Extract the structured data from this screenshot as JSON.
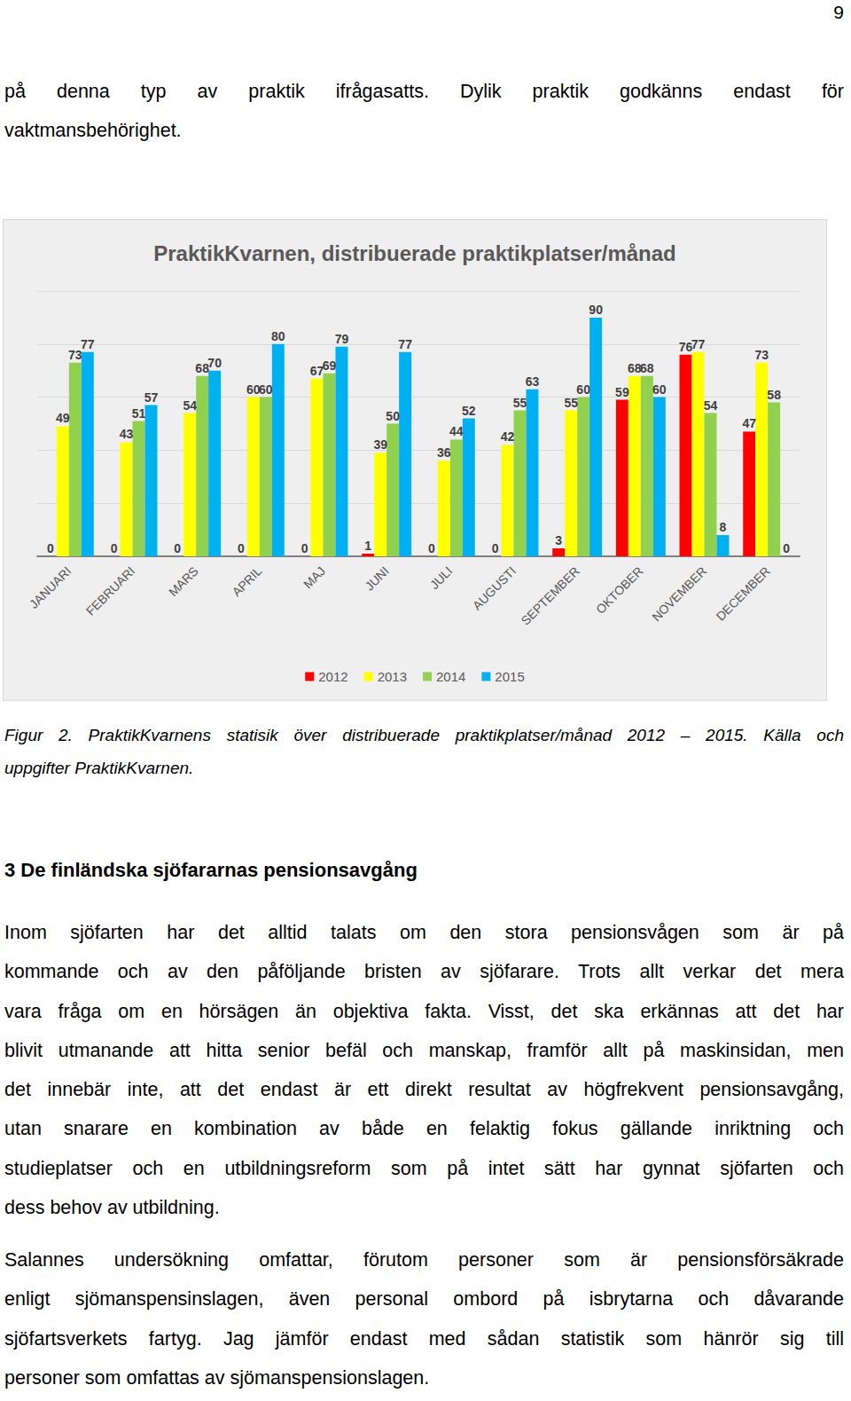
{
  "page_number": "9",
  "intro": {
    "lines": [
      "på denna typ av praktik ifrågasatts. Dylik praktik godkänns endast för",
      "vaktmansbehörighet."
    ]
  },
  "chart_data": {
    "type": "bar",
    "title": "PraktikKvarnen, distribuerade praktikplatser/månad",
    "categories": [
      "JANUARI",
      "FEBRUARI",
      "MARS",
      "APRIL",
      "MAJ",
      "JUNI",
      "JULI",
      "AUGUSTI",
      "SEPTEMBER",
      "OKTOBER",
      "NOVEMBER",
      "DECEMBER"
    ],
    "series": [
      {
        "name": "2012",
        "color": "#ff0000",
        "values": [
          0,
          0,
          0,
          0,
          0,
          1,
          0,
          0,
          3,
          59,
          76,
          47
        ]
      },
      {
        "name": "2013",
        "color": "#ffff00",
        "values": [
          49,
          43,
          54,
          60,
          67,
          39,
          36,
          42,
          55,
          68,
          77,
          73
        ]
      },
      {
        "name": "2014",
        "color": "#92d050",
        "values": [
          73,
          51,
          68,
          60,
          69,
          50,
          44,
          55,
          60,
          68,
          54,
          58
        ]
      },
      {
        "name": "2015",
        "color": "#00b0f0",
        "values": [
          77,
          57,
          70,
          80,
          79,
          77,
          52,
          63,
          90,
          60,
          8,
          0
        ]
      }
    ],
    "ylim": [
      0,
      100
    ],
    "yticks": [
      0,
      20,
      40,
      60,
      80,
      100
    ],
    "grid": true,
    "legend": "bottom",
    "data_labels": true,
    "tick_labels": "x"
  },
  "caption": {
    "lines": [
      "Figur 2. PraktikKvarnens statisik över distribuerade praktikplatser/månad 2012 – 2015. Källa och",
      "uppgifter PraktikKvarnen."
    ]
  },
  "heading": "3 De finländska sjöfararnas pensionsavgång",
  "paragraphs": [
    {
      "lines": [
        "Inom sjöfarten har det alltid talats om den stora pensionsvågen som är på",
        "kommande och av den påföljande bristen av sjöfarare. Trots allt verkar det mera",
        "vara fråga om en hörsägen än objektiva fakta. Visst, det ska erkännas att det har",
        "blivit utmanande att hitta senior befäl och manskap, framför allt på maskinsidan, men",
        "det innebär inte, att det endast är ett direkt resultat av högfrekvent pensionsavgång,",
        "utan snarare en kombination av både en felaktig fokus gällande inriktning och",
        "studieplatser och en utbildningsreform som på intet sätt har gynnat sjöfarten och",
        "dess behov av utbildning."
      ]
    },
    {
      "lines": [
        "Salannes undersökning omfattar, förutom personer som är pensionsförsäkrade",
        "enligt sjömanspensinslagen, även personal ombord på isbrytarna och dåvarande",
        "sjöfartsverkets fartyg. Jag jämför endast med sådan statistik som hänrör sig till",
        "personer som omfattas av sjömanspensionslagen."
      ]
    }
  ]
}
